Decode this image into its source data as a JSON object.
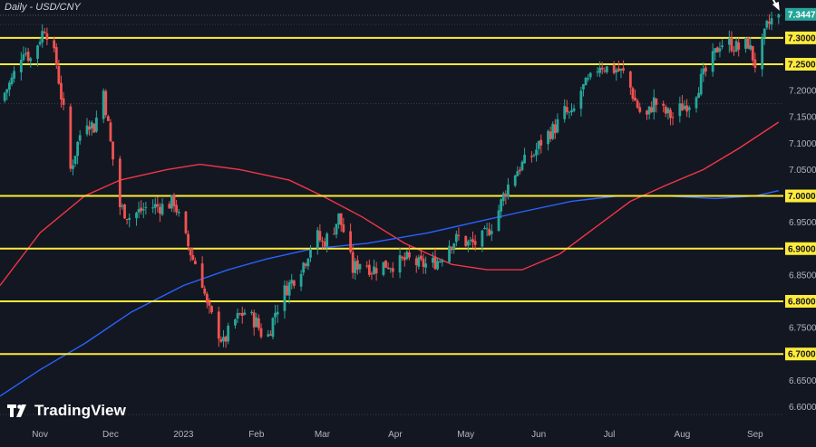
{
  "header": {
    "title": "Daily - USD/CNY"
  },
  "branding": {
    "name": "TradingView"
  },
  "colors": {
    "background": "#131722",
    "bull": "#26a69a",
    "bear": "#ef5350",
    "ma_fast": "#f23645",
    "ma_slow": "#2962ff",
    "level": "#ffeb3b",
    "last_price_bg": "#26a69a",
    "arrow": "#ffffff"
  },
  "chart_data": {
    "type": "candlestick",
    "symbol": "USD/CNY",
    "interval": "Daily",
    "y_axis": {
      "ylim": [
        6.575,
        7.365
      ],
      "ticks": [
        "6.6000",
        "6.6500",
        "6.7000",
        "6.7500",
        "6.8000",
        "6.8500",
        "6.9000",
        "6.9500",
        "7.0000",
        "7.0500",
        "7.1000",
        "7.1500",
        "7.2000",
        "7.2500",
        "7.3000"
      ]
    },
    "x_axis": {
      "range": [
        "2022-10-15",
        "2023-09-13"
      ],
      "ticks": [
        {
          "label": "Nov",
          "date": "2022-11-01"
        },
        {
          "label": "Dec",
          "date": "2022-12-01"
        },
        {
          "label": "2023",
          "date": "2023-01-01"
        },
        {
          "label": "Feb",
          "date": "2023-02-01"
        },
        {
          "label": "Mar",
          "date": "2023-03-01"
        },
        {
          "label": "Apr",
          "date": "2023-04-01"
        },
        {
          "label": "May",
          "date": "2023-05-01"
        },
        {
          "label": "Jun",
          "date": "2023-06-01"
        },
        {
          "label": "Jul",
          "date": "2023-07-01"
        },
        {
          "label": "Aug",
          "date": "2023-08-01"
        },
        {
          "label": "Sep",
          "date": "2023-09-01"
        }
      ]
    },
    "last_price": "7.3447",
    "last_price_value": 7.3447,
    "horizontal_levels": [
      {
        "value": 7.3,
        "label": "7.3000"
      },
      {
        "value": 7.25,
        "label": "7.2500"
      },
      {
        "value": 7.0,
        "label": "7.0000"
      },
      {
        "value": 6.9,
        "label": "6.9000"
      },
      {
        "value": 6.8,
        "label": "6.8000"
      },
      {
        "value": 6.7,
        "label": "6.7000"
      }
    ],
    "close_path": [
      [
        "2022-10-15",
        7.18
      ],
      [
        "2022-10-20",
        7.22
      ],
      [
        "2022-10-25",
        7.28
      ],
      [
        "2022-10-28",
        7.26
      ],
      [
        "2022-11-01",
        7.3
      ],
      [
        "2022-11-03",
        7.32
      ],
      [
        "2022-11-05",
        7.3
      ],
      [
        "2022-11-08",
        7.25
      ],
      [
        "2022-11-11",
        7.16
      ],
      [
        "2022-11-14",
        7.05
      ],
      [
        "2022-11-17",
        7.1
      ],
      [
        "2022-11-20",
        7.15
      ],
      [
        "2022-11-24",
        7.13
      ],
      [
        "2022-11-28",
        7.2
      ],
      [
        "2022-12-01",
        7.1
      ],
      [
        "2022-12-05",
        6.98
      ],
      [
        "2022-12-09",
        6.96
      ],
      [
        "2022-12-13",
        6.97
      ],
      [
        "2022-12-17",
        6.98
      ],
      [
        "2022-12-20",
        6.98
      ],
      [
        "2022-12-24",
        6.98
      ],
      [
        "2022-12-28",
        6.99
      ],
      [
        "2023-01-01",
        6.93
      ],
      [
        "2023-01-05",
        6.88
      ],
      [
        "2023-01-08",
        6.86
      ],
      [
        "2023-01-11",
        6.79
      ],
      [
        "2023-01-14",
        6.76
      ],
      [
        "2023-01-18",
        6.72
      ],
      [
        "2023-01-22",
        6.76
      ],
      [
        "2023-01-27",
        6.78
      ],
      [
        "2023-02-01",
        6.76
      ],
      [
        "2023-02-05",
        6.72
      ],
      [
        "2023-02-09",
        6.78
      ],
      [
        "2023-02-13",
        6.82
      ],
      [
        "2023-02-18",
        6.85
      ],
      [
        "2023-02-22",
        6.88
      ],
      [
        "2023-02-26",
        6.93
      ],
      [
        "2023-03-01",
        6.91
      ],
      [
        "2023-03-05",
        6.93
      ],
      [
        "2023-03-08",
        6.96
      ],
      [
        "2023-03-11",
        6.92
      ],
      [
        "2023-03-14",
        6.86
      ],
      [
        "2023-03-18",
        6.88
      ],
      [
        "2023-03-22",
        6.86
      ],
      [
        "2023-03-27",
        6.87
      ],
      [
        "2023-04-01",
        6.87
      ],
      [
        "2023-04-06",
        6.88
      ],
      [
        "2023-04-11",
        6.87
      ],
      [
        "2023-04-16",
        6.87
      ],
      [
        "2023-04-20",
        6.88
      ],
      [
        "2023-04-24",
        6.91
      ],
      [
        "2023-04-28",
        6.92
      ],
      [
        "2023-05-02",
        6.91
      ],
      [
        "2023-05-06",
        6.91
      ],
      [
        "2023-05-10",
        6.93
      ],
      [
        "2023-05-14",
        6.96
      ],
      [
        "2023-05-17",
        7.0
      ],
      [
        "2023-05-21",
        7.04
      ],
      [
        "2023-05-25",
        7.06
      ],
      [
        "2023-05-30",
        7.08
      ],
      [
        "2023-06-03",
        7.11
      ],
      [
        "2023-06-08",
        7.13
      ],
      [
        "2023-06-12",
        7.16
      ],
      [
        "2023-06-15",
        7.15
      ],
      [
        "2023-06-19",
        7.2
      ],
      [
        "2023-06-23",
        7.22
      ],
      [
        "2023-06-27",
        7.25
      ],
      [
        "2023-07-01",
        7.24
      ],
      [
        "2023-07-04",
        7.24
      ],
      [
        "2023-07-08",
        7.23
      ],
      [
        "2023-07-12",
        7.18
      ],
      [
        "2023-07-16",
        7.14
      ],
      [
        "2023-07-20",
        7.18
      ],
      [
        "2023-07-24",
        7.16
      ],
      [
        "2023-07-28",
        7.15
      ],
      [
        "2023-08-01",
        7.17
      ],
      [
        "2023-08-05",
        7.18
      ],
      [
        "2023-08-09",
        7.22
      ],
      [
        "2023-08-13",
        7.25
      ],
      [
        "2023-08-17",
        7.29
      ],
      [
        "2023-08-21",
        7.29
      ],
      [
        "2023-08-25",
        7.28
      ],
      [
        "2023-08-29",
        7.29
      ],
      [
        "2023-09-01",
        7.25
      ],
      [
        "2023-09-03",
        7.27
      ],
      [
        "2023-09-06",
        7.32
      ],
      [
        "2023-09-09",
        7.34
      ],
      [
        "2023-09-11",
        7.3447
      ]
    ],
    "series": [
      {
        "name": "",
        "color": "#f23645",
        "points": [
          [
            "2022-10-15",
            6.83
          ],
          [
            "2022-11-01",
            6.93
          ],
          [
            "2022-11-20",
            7.0
          ],
          [
            "2022-12-05",
            7.03
          ],
          [
            "2022-12-25",
            7.05
          ],
          [
            "2023-01-08",
            7.06
          ],
          [
            "2023-01-25",
            7.05
          ],
          [
            "2023-02-15",
            7.03
          ],
          [
            "2023-03-01",
            7.0
          ],
          [
            "2023-03-18",
            6.96
          ],
          [
            "2023-04-05",
            6.91
          ],
          [
            "2023-04-25",
            6.87
          ],
          [
            "2023-05-10",
            6.86
          ],
          [
            "2023-05-25",
            6.86
          ],
          [
            "2023-06-10",
            6.89
          ],
          [
            "2023-06-25",
            6.94
          ],
          [
            "2023-07-10",
            6.99
          ],
          [
            "2023-07-25",
            7.02
          ],
          [
            "2023-08-10",
            7.05
          ],
          [
            "2023-08-25",
            7.09
          ],
          [
            "2023-09-11",
            7.14
          ]
        ]
      },
      {
        "name": "",
        "color": "#2962ff",
        "points": [
          [
            "2022-10-15",
            6.62
          ],
          [
            "2022-11-01",
            6.67
          ],
          [
            "2022-11-20",
            6.72
          ],
          [
            "2022-12-10",
            6.78
          ],
          [
            "2023-01-01",
            6.83
          ],
          [
            "2023-01-20",
            6.86
          ],
          [
            "2023-02-05",
            6.88
          ],
          [
            "2023-02-25",
            6.9
          ],
          [
            "2023-03-20",
            6.91
          ],
          [
            "2023-04-15",
            6.93
          ],
          [
            "2023-05-05",
            6.95
          ],
          [
            "2023-05-25",
            6.97
          ],
          [
            "2023-06-15",
            6.99
          ],
          [
            "2023-07-05",
            7.0
          ],
          [
            "2023-07-25",
            7.0
          ],
          [
            "2023-08-15",
            6.995
          ],
          [
            "2023-09-01",
            7.0
          ],
          [
            "2023-09-11",
            7.01
          ]
        ]
      }
    ]
  }
}
